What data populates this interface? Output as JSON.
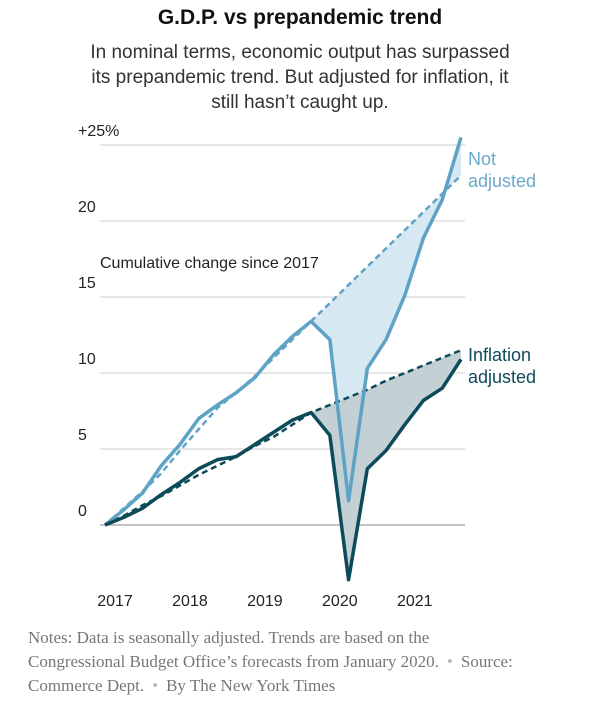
{
  "chart_data": {
    "type": "line",
    "title": "G.D.P. vs prepandemic trend",
    "subtitle": "In nominal terms, economic output has surpassed its prepandemic trend. But adjusted for inflation, it still hasn’t caught up.",
    "annotation": "Cumulative change since 2017",
    "x": [
      2017,
      2017.25,
      2017.5,
      2017.75,
      2018,
      2018.25,
      2018.5,
      2018.75,
      2019,
      2019.25,
      2019.5,
      2019.75,
      2020,
      2020.25,
      2020.5,
      2020.75,
      2021,
      2021.25,
      2021.5,
      2021.75
    ],
    "xlim": [
      2017,
      2021.75
    ],
    "xticks": [
      2017,
      2018,
      2019,
      2020,
      2021
    ],
    "ylim": [
      -4,
      27
    ],
    "yticks": [
      0,
      5,
      10,
      15,
      20,
      {
        "value": 25,
        "label": "+25%"
      }
    ],
    "grid": true,
    "series": [
      {
        "name": "Not adjusted",
        "color": "#5ea2c6",
        "values": [
          0,
          1.0,
          2.1,
          3.9,
          5.3,
          7.0,
          7.9,
          8.7,
          9.7,
          11.2,
          12.4,
          13.4,
          12.2,
          1.6,
          10.3,
          12.2,
          15.1,
          18.9,
          21.4,
          25.5
        ]
      },
      {
        "name": "Not adjusted trend",
        "color": "#5ea2c6",
        "dashed": true,
        "values": [
          0,
          1.1,
          2.2,
          3.4,
          4.9,
          6.3,
          7.7,
          8.7,
          9.8,
          11.0,
          12.2,
          13.4,
          14.6,
          15.8,
          17.0,
          18.2,
          19.4,
          20.6,
          21.8,
          23.0
        ]
      },
      {
        "name": "Inflation adjusted",
        "color": "#0d4a5a",
        "values": [
          0,
          0.5,
          1.1,
          2.0,
          2.8,
          3.7,
          4.3,
          4.5,
          5.3,
          6.1,
          6.9,
          7.4,
          5.9,
          -3.6,
          3.7,
          4.9,
          6.6,
          8.2,
          9.0,
          10.9
        ]
      },
      {
        "name": "Inflation adjusted trend",
        "color": "#0d4a5a",
        "dashed": true,
        "values": [
          0,
          0.6,
          1.3,
          1.9,
          2.6,
          3.3,
          3.9,
          4.5,
          5.2,
          5.8,
          6.6,
          7.4,
          7.9,
          8.4,
          8.9,
          9.5,
          10.0,
          10.5,
          11.0,
          11.5
        ]
      }
    ],
    "notes": "Notes: Data is seasonally adjusted. Trends are based on the Congressional Budget Office’s forecasts from January 2020.",
    "source": "Source: Commerce Dept.",
    "credit": "By The New York Times"
  }
}
